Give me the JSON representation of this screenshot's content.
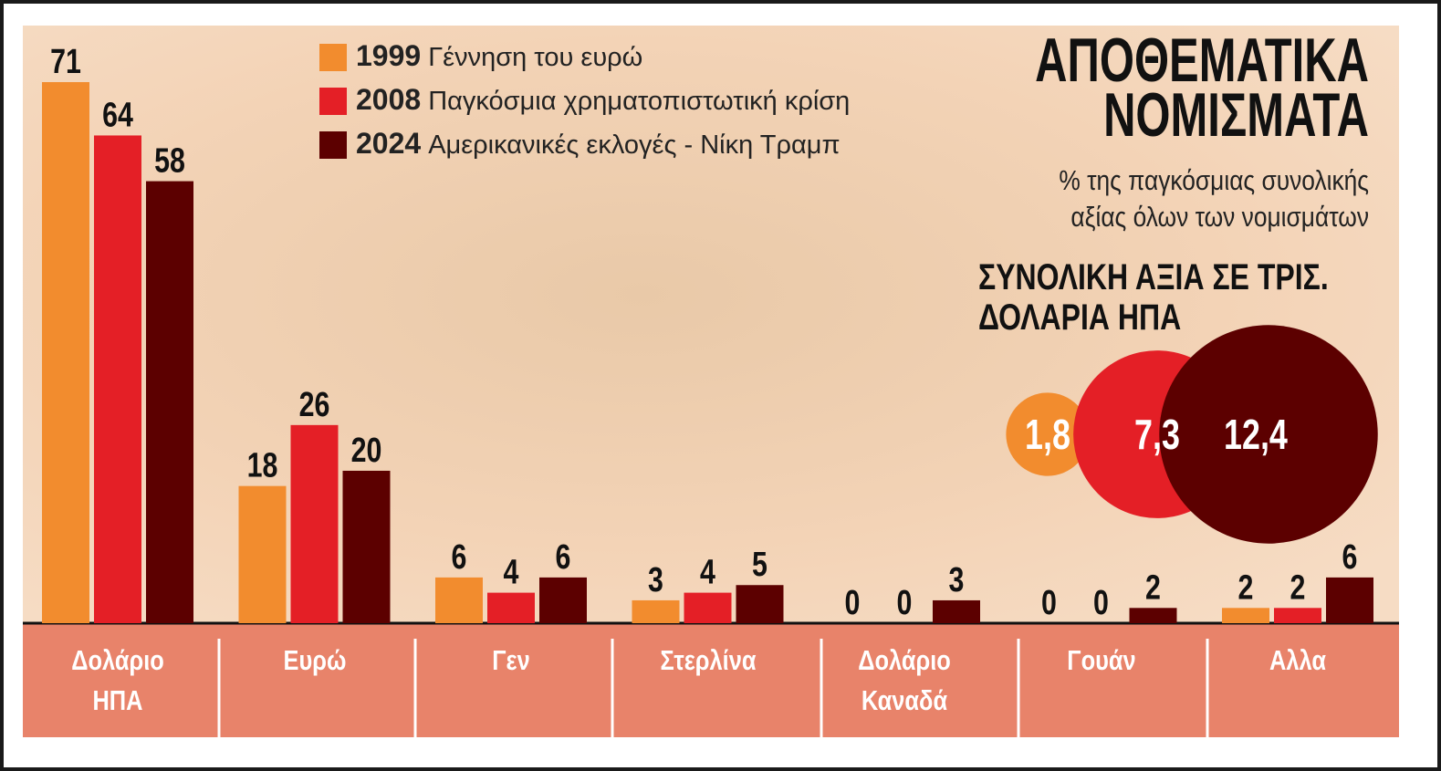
{
  "chart_data": [
    {
      "type": "bar",
      "title": "ΑΠΟΘΕΜΑΤΙΚΑ ΝΟΜΙΣΜΑΤΑ",
      "subtitle": "% της παγκόσμιας συνολικής αξίας όλων των νομισμάτων",
      "categories": [
        "Δολάριο ΗΠΑ",
        "Ευρώ",
        "Γεν",
        "Στερλίνα",
        "Δολάριο Καναδά",
        "Γουάν",
        "Αλλα"
      ],
      "series": [
        {
          "name": "1999",
          "label": "Γέννηση του ευρώ",
          "color": "#f28c2e",
          "values": [
            71,
            18,
            6,
            3,
            0,
            0,
            2
          ]
        },
        {
          "name": "2008",
          "label": "Παγκόσμια χρηματοπιστωτική κρίση",
          "color": "#e41f26",
          "values": [
            64,
            26,
            4,
            4,
            0,
            0,
            2
          ]
        },
        {
          "name": "2024",
          "label": "Αμερικανικές εκλογές - Νίκη Τραμπ",
          "color": "#5c0000",
          "values": [
            58,
            20,
            6,
            5,
            3,
            2,
            6
          ]
        }
      ]
    },
    {
      "type": "bubble",
      "title": "ΣΥΝΟΛΙΚΗ ΑΞΙΑ ΣΕ ΤΡΙΣ. ΔΟΛΑΡΙΑ ΗΠΑ",
      "values": [
        1.8,
        7.3,
        12.4
      ],
      "value_labels": [
        "1,8",
        "7,3",
        "12,4"
      ],
      "colors": [
        "#f28c2e",
        "#e41f26",
        "#5c0000"
      ]
    }
  ]
}
